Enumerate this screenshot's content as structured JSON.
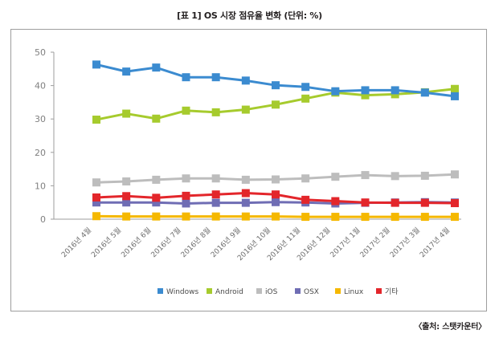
{
  "title": "[표 1] OS 시장 점유율 변화 (단위: %)",
  "source": "〈출처: 스탯카운터〉",
  "chart_data": {
    "type": "line",
    "categories": [
      "2016년 4월",
      "2016년 5월",
      "2016년 6월",
      "2016년 7월",
      "2016년 8월",
      "2016년 9월",
      "2016년 10월",
      "2016년 11월",
      "2016년 12월",
      "2017년 1월",
      "2017년 2월",
      "2017년 3월",
      "2017년 4월"
    ],
    "ylim": [
      0,
      50
    ],
    "yticks": [
      0,
      10,
      20,
      30,
      40,
      50
    ],
    "legend_position": "bottom",
    "grid": false,
    "series": [
      {
        "name": "Windows",
        "color": "#3b8bd0",
        "values": [
          46.3,
          44.2,
          45.4,
          42.5,
          42.5,
          41.5,
          40.1,
          39.6,
          38.3,
          38.6,
          38.6,
          37.9,
          36.8
        ]
      },
      {
        "name": "Android",
        "color": "#a6cb2d",
        "values": [
          29.8,
          31.6,
          30.1,
          32.5,
          32.0,
          32.8,
          34.3,
          36.1,
          37.9,
          37.1,
          37.4,
          38.0,
          39.0
        ]
      },
      {
        "name": "iOS",
        "color": "#bdbdbd",
        "values": [
          11.0,
          11.3,
          11.8,
          12.2,
          12.2,
          11.8,
          11.9,
          12.2,
          12.7,
          13.2,
          12.9,
          13.0,
          13.4
        ]
      },
      {
        "name": "OSX",
        "color": "#6f6db4",
        "values": [
          5.0,
          5.0,
          5.0,
          4.7,
          4.9,
          4.9,
          5.1,
          5.0,
          4.7,
          4.9,
          5.0,
          5.1,
          5.0
        ]
      },
      {
        "name": "Linux",
        "color": "#f5b800",
        "values": [
          0.9,
          0.8,
          0.8,
          0.8,
          0.8,
          0.8,
          0.8,
          0.7,
          0.7,
          0.7,
          0.7,
          0.7,
          0.7
        ]
      },
      {
        "name": "기타",
        "color": "#e3262b",
        "values": [
          6.5,
          6.9,
          6.4,
          7.0,
          7.4,
          7.8,
          7.4,
          5.8,
          5.4,
          5.0,
          4.9,
          4.9,
          4.8
        ]
      }
    ]
  }
}
